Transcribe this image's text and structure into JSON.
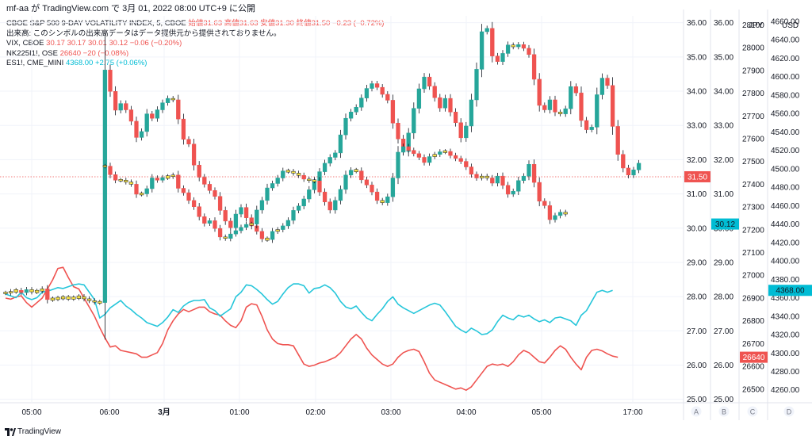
{
  "header": {
    "text": "mf-aa が TradingView.com で 3月 01, 2022 08:00 UTC+9 に公開"
  },
  "legend": [
    {
      "id": "spx9d",
      "name": "CBOE S&P 500 9-DAY VOLATILITY INDEX, 5, CBOE",
      "values": "始値31.63 高値31.63 安値31.30 終値31.50 −0.23 (−0.72%)",
      "color": "#ef5350"
    },
    {
      "id": "note",
      "name": "出来高: このシンボルの出来高データはデータ提供元から提供されておりません。",
      "values": "",
      "color": "#131722"
    },
    {
      "id": "vix",
      "name": "VIX, CBOE",
      "values": "30.17 30.17 30.01 30.12 −0.06 (−0.20%)",
      "color": "#ef5350"
    },
    {
      "id": "nk",
      "name": "NK225I1!, OSE",
      "values": "26640 −20 (−0.08%)",
      "color": "#ef5350"
    },
    {
      "id": "es",
      "name": "ES1!, CME_MINI",
      "values": "4368.00 +2.75 (+0.06%)",
      "color": "#00bcd4"
    }
  ],
  "footer": {
    "brand": "TradingView",
    "logo_icon": "tradingview-logo-icon"
  },
  "chart_data": {
    "type": "candlestick-overlay",
    "x_ticks": [
      "05:00",
      "06:00",
      "3月",
      "01:00",
      "02:00",
      "03:00",
      "04:00",
      "05:00",
      "17:00"
    ],
    "axes": [
      {
        "id": "A",
        "unit": "",
        "ticks": [
          "36.00",
          "35.00",
          "34.00",
          "33.00",
          "32.00",
          "31.00",
          "30.00",
          "29.00",
          "28.00",
          "27.00",
          "26.00",
          "25.00"
        ],
        "range": [
          24.9,
          36.2
        ]
      },
      {
        "id": "B",
        "unit": "",
        "ticks": [
          "36.00",
          "35.00",
          "34.00",
          "33.00",
          "32.00",
          "31.00",
          "30.00",
          "29.00",
          "28.00",
          "27.00",
          "26.00",
          "25.00"
        ],
        "range": [
          24.9,
          36.2
        ]
      },
      {
        "id": "C",
        "unit": "JPY",
        "ticks": [
          "28100",
          "28000",
          "27900",
          "27800",
          "27700",
          "27600",
          "27500",
          "27400",
          "27300",
          "27200",
          "27100",
          "27000",
          "26900",
          "26800",
          "26700",
          "26600",
          "26500"
        ],
        "range": [
          26440,
          28140
        ]
      },
      {
        "id": "D",
        "unit": "USD",
        "ticks": [
          "4660.00",
          "4640.00",
          "4620.00",
          "4600.00",
          "4580.00",
          "4560.00",
          "4540.00",
          "4520.00",
          "4500.00",
          "4480.00",
          "4460.00",
          "4440.00",
          "4420.00",
          "4400.00",
          "4380.00",
          "4360.00",
          "4340.00",
          "4320.00",
          "4300.00",
          "4280.00",
          "4260.00"
        ],
        "range": [
          4246,
          4666
        ]
      }
    ],
    "axis_letters": [
      "A",
      "B",
      "C",
      "D"
    ],
    "last_values": [
      {
        "series": "spx9d",
        "label": "31.50",
        "value": 31.5,
        "axis": "A",
        "color": "#ef5350"
      },
      {
        "series": "vix",
        "label": "30.12",
        "value": 30.12,
        "axis": "B",
        "color": "#00bcd4"
      },
      {
        "series": "nk",
        "label": "26640",
        "value": 26640,
        "axis": "C",
        "color": "#ef5350"
      },
      {
        "series": "es",
        "label": "4368.00",
        "value": 4368,
        "axis": "D",
        "color": "#00bcd4"
      }
    ],
    "colors": {
      "up": "#26a69a",
      "down": "#ef5350",
      "doji": "#f7e244",
      "nk": "#ef5350",
      "es": "#26c6da"
    },
    "series": [
      {
        "name": "CBOE S&P 500 9-DAY VOLATILITY INDEX",
        "style": "candles",
        "t0": 0,
        "close": [
          27.98,
          28.02,
          28.05,
          27.99,
          28.07,
          28.01,
          28.03,
          28.09,
          27.8,
          27.82,
          27.84,
          27.86,
          27.83,
          27.85,
          27.88,
          27.82,
          27.77,
          27.73,
          27.72,
          34.03,
          33.45,
          32.94,
          33.12,
          32.95,
          32.64,
          32.2,
          32.36,
          32.84,
          32.72,
          32.95,
          33.14,
          33.26,
          33.22,
          32.7,
          32.15,
          32.02,
          31.45,
          31.12,
          30.93,
          30.76,
          30.6,
          30.22,
          29.93,
          29.75,
          30.12,
          30.3,
          30.02,
          29.8,
          29.65,
          29.45,
          29.43,
          29.65,
          29.7,
          29.8,
          29.95,
          30.22,
          30.34,
          30.53,
          30.78,
          31.03,
          31.27,
          31.5,
          31.66,
          31.78,
          32.27,
          32.72,
          32.89,
          33.02,
          33.27,
          33.53,
          33.66,
          33.56,
          33.37,
          33.21,
          32.59,
          32.16,
          31.82,
          32.32,
          32.99,
          33.52,
          33.84,
          33.59,
          33.28,
          33.0,
          33.26,
          32.89,
          32.6,
          32.19,
          32.51,
          33.22,
          34.05,
          35.07,
          35.16,
          34.41,
          34.26,
          34.48,
          34.71,
          34.66,
          34.72,
          34.62,
          34.45,
          33.78,
          33.07,
          32.95,
          33.22,
          32.89,
          32.84,
          32.98,
          33.58,
          33.41,
          32.66,
          32.41,
          32.48,
          33.36,
          33.81,
          33.61,
          32.5,
          31.74,
          31.37,
          31.18,
          31.32,
          31.5
        ],
        "range": [
          25.0,
          35.5
        ]
      },
      {
        "name": "VIX",
        "style": "candles",
        "t0": 19,
        "close": [
          31.42,
          31.19,
          31.04,
          31.04,
          30.99,
          30.93,
          30.66,
          30.67,
          30.81,
          31.1,
          31.04,
          31.11,
          31.14,
          31.18,
          30.82,
          30.7,
          30.49,
          30.32,
          30.05,
          29.87,
          29.94,
          29.73,
          29.5,
          29.46,
          29.58,
          29.67,
          29.76,
          29.84,
          29.85,
          30.23,
          30.49,
          30.83,
          30.95,
          31.1,
          31.29,
          31.28,
          31.23,
          31.17,
          31.07,
          31.03,
          31.02,
          30.72,
          30.45,
          30.23,
          30.49,
          30.79,
          31.18,
          31.31,
          31.29,
          31.05,
          30.91,
          30.72,
          30.49,
          30.43,
          30.59,
          31.1,
          31.8,
          31.95,
          31.85,
          31.76,
          31.66,
          31.52,
          31.68,
          31.74,
          31.81,
          31.82,
          31.71,
          31.63,
          31.55,
          31.4,
          31.2,
          31.1,
          31.15,
          31.1,
          30.96,
          31.15,
          30.9,
          30.66,
          30.74,
          31.03,
          31.15,
          31.47,
          30.98,
          30.47,
          30.35,
          29.97,
          30.08,
          30.17,
          30.12
        ],
        "range": [
          25.0,
          35.5
        ]
      },
      {
        "name": "NK225I1!",
        "style": "line",
        "t0": 0,
        "values": [
          26900,
          26895,
          26905,
          26910,
          26880,
          26860,
          26880,
          26900,
          26940,
          26980,
          27030,
          27035,
          26990,
          26950,
          26940,
          26900,
          26860,
          26820,
          26770,
          26725,
          26685,
          26690,
          26670,
          26665,
          26660,
          26655,
          26640,
          26640,
          26650,
          26660,
          26700,
          26760,
          26800,
          26830,
          26850,
          26840,
          26850,
          26860,
          26860,
          26840,
          26830,
          26825,
          26800,
          26780,
          26770,
          26800,
          26860,
          26875,
          26870,
          26820,
          26760,
          26720,
          26700,
          26695,
          26695,
          26690,
          26650,
          26610,
          26600,
          26605,
          26615,
          26620,
          26630,
          26640,
          26660,
          26690,
          26720,
          26740,
          26720,
          26680,
          26650,
          26630,
          26610,
          26600,
          26610,
          26640,
          26660,
          26670,
          26675,
          26665,
          26620,
          26570,
          26540,
          26530,
          26520,
          26510,
          26500,
          26505,
          26495,
          26510,
          26540,
          26570,
          26600,
          26610,
          26605,
          26610,
          26600,
          26620,
          26650,
          26670,
          26660,
          26640,
          26620,
          26615,
          26640,
          26670,
          26690,
          26675,
          26640,
          26610,
          26585,
          26640,
          26670,
          26675,
          26668,
          26655,
          26645,
          26640
        ],
        "range": [
          26440,
          28140
        ]
      },
      {
        "name": "ES1!",
        "style": "line",
        "t0": 0,
        "values": [
          4364,
          4362,
          4360,
          4366,
          4360,
          4358,
          4360,
          4366,
          4367,
          4369,
          4371,
          4370,
          4372,
          4374,
          4375,
          4374,
          4366,
          4358,
          4338,
          4342,
          4349,
          4353,
          4357,
          4351,
          4347,
          4342,
          4338,
          4333,
          4331,
          4329,
          4333,
          4339,
          4347,
          4344,
          4351,
          4355,
          4357,
          4357,
          4358,
          4349,
          4346,
          4340,
          4344,
          4348,
          4361,
          4366,
          4374,
          4373,
          4369,
          4364,
          4358,
          4353,
          4356,
          4364,
          4371,
          4375,
          4375,
          4373,
          4365,
          4370,
          4371,
          4374,
          4371,
          4365,
          4356,
          4350,
          4348,
          4351,
          4344,
          4338,
          4335,
          4342,
          4348,
          4356,
          4361,
          4353,
          4349,
          4346,
          4343,
          4346,
          4349,
          4352,
          4354,
          4352,
          4345,
          4337,
          4329,
          4325,
          4322,
          4327,
          4324,
          4320,
          4321,
          4325,
          4334,
          4341,
          4338,
          4336,
          4341,
          4339,
          4341,
          4337,
          4334,
          4336,
          4333,
          4338,
          4339,
          4337,
          4335,
          4330,
          4341,
          4346,
          4356,
          4366,
          4368,
          4366,
          4368
        ],
        "range": [
          4246,
          4666
        ]
      }
    ]
  }
}
